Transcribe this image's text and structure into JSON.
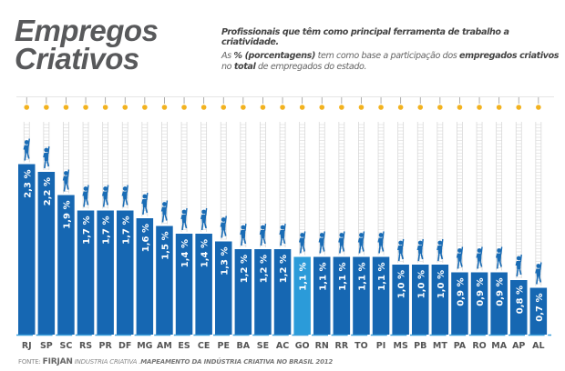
{
  "header": {
    "title_line1": "Empregos",
    "title_line2": "Criativos",
    "subtitle": "Profissionais que têm como principal ferramenta de trabalho a criatividade.",
    "note_parts": [
      "As ",
      "% (porcentagens)",
      " tem como base a participação dos ",
      "empregados criativos",
      " no ",
      "total",
      " de empregados do estado."
    ]
  },
  "footer": {
    "fonte_label": "FONTE:",
    "org": "FIRJAN",
    "pub": "INDUSTRIA CRIATIVA .",
    "title": "MAPEAMENTO DA INDÚSTRIA CRIATIVA NO BRASIL 2012"
  },
  "chart_data": {
    "type": "bar",
    "categories": [
      "RJ",
      "SP",
      "SC",
      "RS",
      "PR",
      "DF",
      "MG",
      "AM",
      "ES",
      "CE",
      "PE",
      "BA",
      "SE",
      "AC",
      "GO",
      "RN",
      "RR",
      "TO",
      "PI",
      "MS",
      "PB",
      "MT",
      "PA",
      "RO",
      "MA",
      "AP",
      "AL"
    ],
    "values": [
      2.3,
      2.2,
      1.9,
      1.7,
      1.7,
      1.7,
      1.6,
      1.5,
      1.4,
      1.4,
      1.3,
      1.2,
      1.2,
      1.2,
      1.1,
      1.1,
      1.1,
      1.1,
      1.1,
      1.0,
      1.0,
      1.0,
      0.9,
      0.9,
      0.9,
      0.8,
      0.7
    ],
    "labels": [
      "2,3 %",
      "2,2 %",
      "1,9 %",
      "1,7 %",
      "1,7 %",
      "1,7 %",
      "1,6 %",
      "1,5 %",
      "1,4 %",
      "1,4 %",
      "1,3 %",
      "1,2 %",
      "1,2 %",
      "1,2 %",
      "1,1 %",
      "1,1 %",
      "1,1 %",
      "1,1 %",
      "1,1 %",
      "1,0 %",
      "1,0 %",
      "1,0 %",
      "0,9 %",
      "0,9 %",
      "0,9 %",
      "0,8 %",
      "0,7 %"
    ],
    "highlight": "GO",
    "colors": {
      "bar": "#1667b2",
      "highlight": "#2b9bd9",
      "bulb": "#f2b21f",
      "ladder": "#d9d9d9",
      "figure": "#1a6cb5"
    },
    "grid": false
  }
}
